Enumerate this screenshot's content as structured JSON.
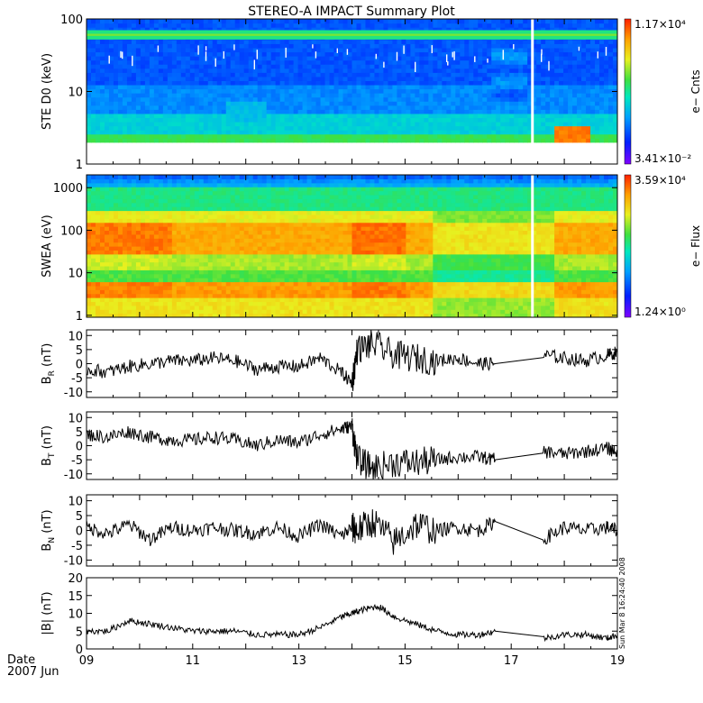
{
  "title": "STEREO-A IMPACT Summary Plot",
  "x_axis": {
    "ticks": [
      "09",
      "11",
      "13",
      "15",
      "17",
      "19"
    ],
    "date_label": "Date",
    "year_month": "2007 Jun"
  },
  "timestamp_label": "Sun Mar  8 16:24:40 2008",
  "chart_data": [
    {
      "type": "heatmap",
      "ylabel": "STE D0 (keV)",
      "yscale": "log",
      "ylim": [
        1,
        100
      ],
      "yticks": [
        "1",
        "10",
        "100"
      ],
      "colorbar": {
        "max_label": "1.17×10⁴",
        "min_label": "3.41×10⁻²",
        "title": "e− Cnts"
      },
      "colormap": [
        "#8000ff",
        "#0020ff",
        "#00a0ff",
        "#00e8c0",
        "#40e040",
        "#e8f020",
        "#ffa000",
        "#ff2000"
      ],
      "xlim": [
        9,
        19
      ],
      "features": {
        "band_keV": 60,
        "floor_keV": 2,
        "gap_day": 17.4,
        "enhancement_days": [
          17.8,
          18.4
        ]
      }
    },
    {
      "type": "heatmap",
      "ylabel": "SWEA (eV)",
      "yscale": "log",
      "ylim": [
        0.9,
        2000
      ],
      "yticks": [
        "1",
        "10",
        "100",
        "1000"
      ],
      "colorbar": {
        "max_label": "3.59×10⁴",
        "min_label": "1.24×10⁰",
        "title": "e− Flux"
      },
      "colormap": [
        "#8000ff",
        "#0020ff",
        "#00a0ff",
        "#00e8c0",
        "#40e040",
        "#e8f020",
        "#ffa000",
        "#ff2000"
      ],
      "xlim": [
        9,
        19
      ],
      "features": {
        "gap_day": 17.4,
        "quiet_days": [
          15.5,
          17.8
        ]
      }
    },
    {
      "type": "line",
      "ylabel": "B",
      "ylabel_sub": "R",
      "ylabel_unit": "(nT)",
      "ylim": [
        -12,
        12
      ],
      "yticks": [
        "-10",
        "-5",
        "0",
        "5",
        "10"
      ],
      "xlim": [
        9,
        19
      ],
      "x": [
        9.0,
        9.4,
        9.8,
        10.2,
        10.6,
        11.0,
        11.4,
        11.8,
        12.2,
        12.6,
        13.0,
        13.4,
        13.8,
        14.0,
        14.1,
        14.4,
        14.8,
        15.2,
        15.6,
        16.0,
        16.4,
        16.7,
        17.6,
        18.0,
        18.4,
        18.8,
        19.0
      ],
      "y": [
        -2,
        -3,
        -1,
        0,
        1,
        1,
        2,
        1,
        -2,
        -1,
        -1,
        2,
        -3,
        -7,
        5,
        7,
        3,
        2,
        1,
        2,
        0,
        0,
        3,
        2,
        1,
        3,
        4
      ]
    },
    {
      "type": "line",
      "ylabel": "B",
      "ylabel_sub": "T",
      "ylabel_unit": "(nT)",
      "ylim": [
        -12,
        12
      ],
      "yticks": [
        "-10",
        "-5",
        "0",
        "5",
        "10"
      ],
      "xlim": [
        9,
        19
      ],
      "x": [
        9.0,
        9.4,
        9.8,
        10.2,
        10.6,
        11.0,
        11.4,
        11.8,
        12.2,
        12.6,
        13.0,
        13.4,
        13.8,
        14.0,
        14.1,
        14.4,
        14.8,
        15.2,
        15.6,
        16.0,
        16.4,
        16.7,
        17.6,
        18.0,
        18.4,
        18.8,
        19.0
      ],
      "y": [
        4,
        3,
        5,
        3,
        2,
        2,
        3,
        2,
        0,
        2,
        1,
        4,
        6,
        7,
        -5,
        -8,
        -6,
        -6,
        -5,
        -4,
        -4,
        -5,
        -2,
        -3,
        -2,
        -1,
        -2
      ]
    },
    {
      "type": "line",
      "ylabel": "B",
      "ylabel_sub": "N",
      "ylabel_unit": "(nT)",
      "ylim": [
        -12,
        12
      ],
      "yticks": [
        "-10",
        "-5",
        "0",
        "5",
        "10"
      ],
      "xlim": [
        9,
        19
      ],
      "x": [
        9.0,
        9.4,
        9.8,
        10.2,
        10.6,
        11.0,
        11.4,
        11.8,
        12.2,
        12.6,
        13.0,
        13.4,
        13.8,
        14.0,
        14.1,
        14.4,
        14.8,
        15.2,
        15.6,
        16.0,
        16.4,
        16.7,
        17.6,
        18.0,
        18.4,
        18.8,
        19.0
      ],
      "y": [
        1,
        -1,
        2,
        -3,
        1,
        0,
        1,
        0,
        -1,
        1,
        -2,
        2,
        -2,
        1,
        0,
        3,
        -4,
        2,
        0,
        1,
        0,
        3,
        -3,
        1,
        0,
        1,
        0
      ]
    },
    {
      "type": "line",
      "ylabel": "|B| (nT)",
      "ylim": [
        0,
        20
      ],
      "yticks": [
        "0",
        "5",
        "10",
        "15",
        "20"
      ],
      "xlim": [
        9,
        19
      ],
      "x": [
        9.0,
        9.4,
        9.8,
        10.2,
        10.6,
        11.0,
        11.4,
        11.8,
        12.2,
        12.6,
        13.0,
        13.4,
        13.8,
        14.0,
        14.2,
        14.5,
        14.8,
        15.2,
        15.6,
        16.0,
        16.4,
        16.7,
        17.6,
        18.0,
        18.4,
        18.8,
        19.0
      ],
      "y": [
        5,
        5,
        8,
        7,
        6,
        5,
        5,
        5,
        4,
        4,
        4,
        6,
        9,
        10,
        11,
        12,
        9,
        7,
        5,
        4,
        4,
        5,
        3,
        4,
        4,
        3,
        4
      ]
    }
  ]
}
